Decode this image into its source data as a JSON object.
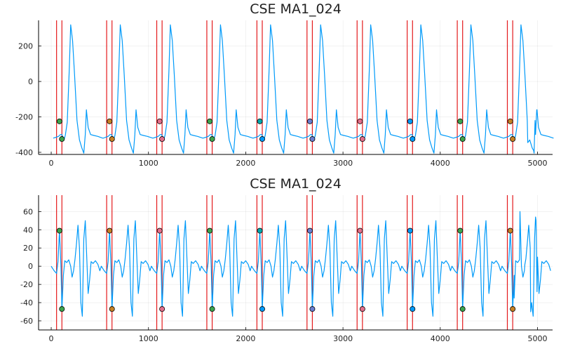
{
  "chart_data": [
    {
      "type": "line",
      "title": "CSE MA1_024",
      "xlim": [
        -130,
        5155
      ],
      "ylim": [
        -412,
        345
      ],
      "xticks": [
        0,
        1000,
        2000,
        3000,
        4000,
        5000
      ],
      "xtick_labels": [
        "0",
        "1000",
        "2000",
        "3000",
        "4000",
        "5000"
      ],
      "yticks": [
        -400,
        -200,
        0,
        200
      ],
      "ytick_labels": [
        "-400",
        "-200",
        "0",
        "200"
      ],
      "grid": true,
      "legend": "none",
      "line_color": "#009af9",
      "vline_color": "#e41a1c",
      "vlines": [
        55,
        110,
        570,
        625,
        1085,
        1140,
        1600,
        1655,
        2115,
        2170,
        2630,
        2685,
        3145,
        3200,
        3660,
        3715,
        4175,
        4230,
        4690,
        4745
      ],
      "markers_upper": {
        "x": [
          85,
          600,
          1115,
          1630,
          2145,
          2660,
          3175,
          3690,
          4205,
          4720
        ],
        "y": -225
      },
      "markers_lower": {
        "x": [
          110,
          625,
          1140,
          1655,
          2170,
          2685,
          3200,
          3715,
          4230,
          4745
        ],
        "y": -325
      },
      "marker_colors_upper": [
        "#3da44d",
        "#c68125",
        "#e26f8b",
        "#3da44d",
        "#00a9ad",
        "#6b7ecf",
        "#e26f8b",
        "#009af9",
        "#3da44d",
        "#c68125"
      ],
      "marker_colors_lower": [
        "#3da44d",
        "#c68125",
        "#e26f8b",
        "#3da44d",
        "#009af9",
        "#6b7ecf",
        "#e26f8b",
        "#009af9",
        "#3da44d",
        "#c68125"
      ],
      "beats_start": [
        20,
        530,
        1045,
        1560,
        2075,
        2590,
        3105,
        3620,
        4135,
        4650
      ],
      "beat_template": [
        [
          0,
          -320
        ],
        [
          30,
          -315
        ],
        [
          55,
          -310
        ],
        [
          75,
          -300
        ],
        [
          90,
          -300
        ],
        [
          110,
          -330
        ],
        [
          125,
          -305
        ],
        [
          145,
          -230
        ],
        [
          165,
          60
        ],
        [
          180,
          320
        ],
        [
          200,
          230
        ],
        [
          220,
          40
        ],
        [
          245,
          -220
        ],
        [
          270,
          -330
        ],
        [
          295,
          -375
        ],
        [
          315,
          -405
        ],
        [
          330,
          -300
        ],
        [
          342,
          -160
        ],
        [
          360,
          -260
        ],
        [
          385,
          -300
        ],
        [
          420,
          -305
        ],
        [
          460,
          -310
        ],
        [
          515,
          -320
        ]
      ],
      "tail": [
        [
          4900,
          -345
        ],
        [
          4960,
          -390
        ],
        [
          4975,
          -220
        ],
        [
          4995,
          -160
        ]
      ]
    },
    {
      "type": "line",
      "title": "CSE MA1_024",
      "xlim": [
        -130,
        5155
      ],
      "ylim": [
        -70,
        78
      ],
      "xticks": [
        0,
        1000,
        2000,
        3000,
        4000,
        5000
      ],
      "xtick_labels": [
        "0",
        "1000",
        "2000",
        "3000",
        "4000",
        "5000"
      ],
      "yticks": [
        -60,
        -40,
        -20,
        0,
        20,
        40,
        60
      ],
      "ytick_labels": [
        "-60",
        "-40",
        "-20",
        "0",
        "20",
        "40",
        "60"
      ],
      "grid": true,
      "legend": "none",
      "line_color": "#009af9",
      "vline_color": "#e41a1c",
      "vlines": [
        55,
        110,
        570,
        625,
        1085,
        1140,
        1600,
        1655,
        2115,
        2170,
        2630,
        2685,
        3145,
        3200,
        3660,
        3715,
        4175,
        4230,
        4690,
        4745
      ],
      "markers_upper": {
        "x": [
          85,
          600,
          1115,
          1630,
          2145,
          2660,
          3175,
          3690,
          4205,
          4720
        ],
        "y": 39
      },
      "markers_lower": {
        "x": [
          110,
          625,
          1140,
          1655,
          2170,
          2685,
          3200,
          3715,
          4230,
          4745
        ],
        "y": -47
      },
      "marker_colors_upper": [
        "#3da44d",
        "#c68125",
        "#e26f8b",
        "#3da44d",
        "#00a9ad",
        "#6b7ecf",
        "#e26f8b",
        "#009af9",
        "#3da44d",
        "#c68125"
      ],
      "marker_colors_lower": [
        "#3da44d",
        "#c68125",
        "#e26f8b",
        "#3da44d",
        "#009af9",
        "#6b7ecf",
        "#e26f8b",
        "#009af9",
        "#3da44d",
        "#c68125"
      ],
      "beats_start": [
        0,
        515,
        1030,
        1545,
        2060,
        2575,
        3090,
        3605,
        4120,
        4635
      ],
      "beat_template": [
        [
          0,
          0
        ],
        [
          30,
          -5
        ],
        [
          55,
          -8
        ],
        [
          70,
          5
        ],
        [
          85,
          39
        ],
        [
          100,
          0
        ],
        [
          110,
          -47
        ],
        [
          125,
          -10
        ],
        [
          140,
          6
        ],
        [
          160,
          4
        ],
        [
          180,
          7
        ],
        [
          200,
          0
        ],
        [
          215,
          -12
        ],
        [
          230,
          -5
        ],
        [
          245,
          8
        ],
        [
          260,
          25
        ],
        [
          275,
          45
        ],
        [
          290,
          20
        ],
        [
          305,
          -40
        ],
        [
          320,
          -55
        ],
        [
          335,
          30
        ],
        [
          350,
          50
        ],
        [
          365,
          10
        ],
        [
          380,
          -30
        ],
        [
          395,
          -15
        ],
        [
          410,
          5
        ],
        [
          430,
          3
        ],
        [
          455,
          6
        ],
        [
          480,
          2
        ],
        [
          500,
          -5
        ]
      ],
      "tail": [
        [
          4760,
          -35
        ],
        [
          4820,
          60
        ],
        [
          4870,
          2
        ],
        [
          4930,
          -50
        ],
        [
          4980,
          54
        ],
        [
          4995,
          -28
        ]
      ]
    }
  ]
}
